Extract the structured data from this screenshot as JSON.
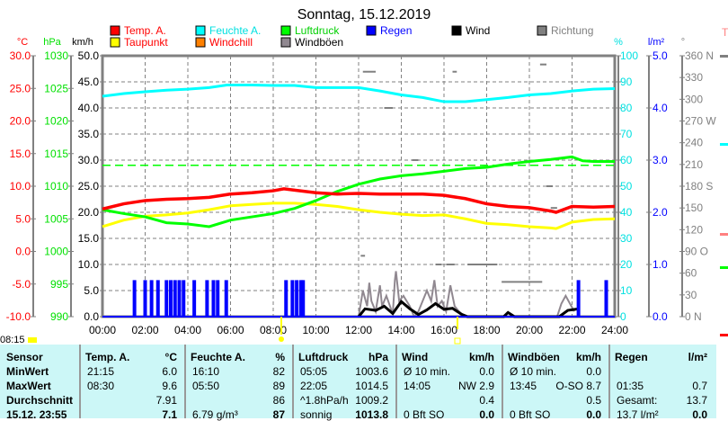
{
  "title": "Sonntag, 15.12.2019",
  "current_time": "08:15",
  "chart_data": {
    "type": "line",
    "title": "Sonntag, 15.12.2019",
    "axes": {
      "celsius": {
        "unit": "°C",
        "ticks": [
          "30.0",
          "25.0",
          "20.0",
          "15.0",
          "10.0",
          "5.0",
          "0.0",
          "-5.0",
          "-10.0"
        ],
        "range": [
          -10,
          30
        ],
        "color": "#ff0000"
      },
      "hpa": {
        "unit": "hPa",
        "ticks": [
          "1030",
          "1025",
          "1020",
          "1015",
          "1010",
          "1005",
          "1000",
          "995",
          "990"
        ],
        "range": [
          990,
          1030
        ],
        "color": "#00e000"
      },
      "kmh": {
        "unit": "km/h",
        "ticks": [
          "50.0",
          "45.0",
          "40.0",
          "35.0",
          "30.0",
          "25.0",
          "20.0",
          "15.0",
          "10.0",
          "5.0",
          "0.0"
        ],
        "range": [
          0,
          50
        ],
        "color": "#000000"
      },
      "percent": {
        "unit": "%",
        "ticks": [
          "100",
          "90",
          "80",
          "70",
          "60",
          "50",
          "40",
          "30",
          "20",
          "10",
          "0"
        ],
        "range": [
          0,
          100
        ],
        "color": "#00e0e0"
      },
      "rain": {
        "unit": "l/m²",
        "ticks": [
          "5.0",
          "4.0",
          "3.0",
          "2.0",
          "1.0",
          "0.0"
        ],
        "range": [
          0,
          5
        ],
        "color": "#0000ff"
      },
      "deg": {
        "unit": "°",
        "ticks": [
          "360 N",
          "330",
          "300",
          "270 W",
          "240",
          "210",
          "180 S",
          "150",
          "120",
          "90  O",
          "60",
          "30",
          "0    N"
        ],
        "range": [
          0,
          360
        ],
        "color": "#808080"
      }
    },
    "x_ticks": [
      "00:00",
      "02:00",
      "04:00",
      "06:00",
      "08:00",
      "10:00",
      "12:00",
      "14:00",
      "16:00",
      "18:00",
      "20:00",
      "22:00",
      "24:00"
    ],
    "legend": [
      {
        "label": "Temp. A.",
        "color": "#ff0000",
        "text_color": "#ff0000"
      },
      {
        "label": "Feuchte A.",
        "color": "#00ffff",
        "text_color": "#00e0e0"
      },
      {
        "label": "Luftdruck",
        "color": "#00ff00",
        "text_color": "#00d000"
      },
      {
        "label": "Regen",
        "color": "#0000ff",
        "text_color": "#0000ff"
      },
      {
        "label": "Wind",
        "color": "#000000",
        "text_color": "#000000"
      },
      {
        "label": "Richtung",
        "color": "#808080",
        "text_color": "#808080"
      },
      {
        "label": "Taupunkt",
        "color": "#ffff00",
        "text_color": "#ff0000"
      },
      {
        "label": "Windchill",
        "color": "#ff8000",
        "text_color": "#ff0000"
      },
      {
        "label": "Windböen",
        "color": "#908890",
        "text_color": "#000000"
      }
    ],
    "series": {
      "temp": {
        "x": [
          0,
          1,
          2,
          3,
          4,
          5,
          6,
          7,
          8,
          8.5,
          9,
          10,
          11,
          12,
          13,
          14,
          15,
          16,
          17,
          18,
          19,
          20,
          21,
          21.25,
          22,
          23,
          24
        ],
        "y": [
          6.5,
          7.3,
          7.8,
          8.0,
          8.1,
          8.3,
          8.8,
          9.0,
          9.3,
          9.6,
          9.4,
          9.0,
          8.8,
          8.9,
          8.8,
          8.8,
          8.8,
          8.6,
          8.1,
          7.3,
          6.9,
          6.7,
          6.2,
          6.0,
          6.9,
          6.8,
          6.9
        ]
      },
      "dewpoint": {
        "x": [
          0,
          1,
          2,
          3,
          4,
          5,
          6,
          7,
          8,
          9,
          10,
          11,
          12,
          13,
          14,
          15,
          16,
          17,
          18,
          19,
          20,
          21,
          21.25,
          22,
          23,
          24
        ],
        "y": [
          3.8,
          4.8,
          5.4,
          5.6,
          5.9,
          6.4,
          7.0,
          7.2,
          7.4,
          7.4,
          7.2,
          6.9,
          6.4,
          6.0,
          5.7,
          5.5,
          5.6,
          5.0,
          4.3,
          4.1,
          3.8,
          3.6,
          3.5,
          4.5,
          4.9,
          5.0
        ]
      },
      "humidity": {
        "x": [
          0,
          1,
          2,
          3,
          4,
          5,
          5.83,
          7,
          8,
          9,
          10,
          11,
          12,
          13,
          14,
          15,
          16,
          17,
          18,
          19,
          20,
          21,
          22,
          23,
          24
        ],
        "y": [
          84.5,
          85.5,
          86.2,
          86.8,
          87.2,
          87.8,
          88.8,
          88.8,
          88.6,
          88.6,
          87.8,
          87.8,
          87.8,
          86.5,
          85,
          84,
          82.4,
          82.4,
          83.2,
          84,
          85,
          85.5,
          86.5,
          87.2,
          87.4
        ]
      },
      "pressure": {
        "x": [
          0,
          1,
          2,
          3,
          4,
          5,
          6,
          7,
          8,
          9,
          10,
          11,
          12,
          13,
          14,
          15,
          16,
          17,
          18,
          19,
          20,
          21,
          22,
          22.5,
          23,
          24
        ],
        "y": [
          1006.4,
          1005.8,
          1005.3,
          1004.4,
          1004.2,
          1003.8,
          1004.8,
          1005.3,
          1005.8,
          1006.6,
          1007.8,
          1009.2,
          1010.3,
          1011.1,
          1011.6,
          1011.9,
          1012.3,
          1012.7,
          1012.9,
          1013.4,
          1013.8,
          1014.1,
          1014.5,
          1013.9,
          1013.8,
          1013.8
        ]
      },
      "pressure_avg": 1013.2,
      "rain": {
        "x": [
          1.5,
          2.0,
          2.3,
          2.6,
          3.0,
          3.2,
          3.4,
          3.6,
          3.8,
          4.3,
          4.9,
          5.2,
          5.4,
          5.8,
          8.6,
          8.9,
          9.1,
          9.3,
          9.4,
          22.3,
          23.6
        ],
        "y": [
          0.7,
          0.7,
          0.7,
          0.7,
          0.7,
          0.7,
          0.7,
          0.7,
          0.7,
          0.7,
          0.7,
          0.7,
          0.7,
          0.7,
          0.7,
          0.7,
          0.7,
          0.7,
          0.7,
          0.7,
          0.7
        ]
      },
      "wind": {
        "x": [
          12,
          12.3,
          12.8,
          13.2,
          13.6,
          14,
          14.4,
          14.8,
          15.2,
          15.6,
          16,
          16.4,
          16.8,
          17.1,
          18.8,
          19,
          19.3,
          21.4,
          21.8,
          22.3
        ],
        "y": [
          0,
          1.5,
          1.2,
          2.0,
          0.6,
          2.9,
          1.5,
          0.4,
          1.3,
          2.5,
          1.4,
          1.6,
          0.5,
          0,
          0,
          0.8,
          0,
          0,
          1.2,
          1.5
        ]
      },
      "gusts": {
        "x": [
          12,
          12.2,
          12.4,
          12.5,
          12.6,
          12.8,
          13,
          13.1,
          13.3,
          13.6,
          13.7,
          13.75,
          13.9,
          14.1,
          14.4,
          14.6,
          14.8,
          15.2,
          15.4,
          15.55,
          15.7,
          15.9,
          16.1,
          16.3,
          16.5,
          16.7,
          17,
          21.3,
          21.5,
          21.7,
          21.9,
          22.1
        ],
        "y": [
          0,
          5,
          2,
          6.5,
          3,
          1,
          6,
          2,
          4,
          0.5,
          7,
          8.7,
          3,
          4,
          2,
          0,
          1,
          5,
          3,
          7,
          2,
          3,
          1,
          6,
          2,
          1,
          0,
          0,
          2.5,
          4,
          2.5,
          1
        ]
      },
      "direction": [
        {
          "x0": 12.1,
          "x1": 12.3,
          "deg": 84
        },
        {
          "x0": 13.2,
          "x1": 13.6,
          "deg": 288
        },
        {
          "x0": 14.5,
          "x1": 14.8,
          "deg": 216
        },
        {
          "x0": 15.6,
          "x1": 15.9,
          "deg": 72
        },
        {
          "x0": 16.1,
          "x1": 16.5,
          "deg": 72
        },
        {
          "x0": 17.1,
          "x1": 18.5,
          "deg": 72
        },
        {
          "x0": 18.7,
          "x1": 20.6,
          "deg": 48
        },
        {
          "x0": 20.5,
          "x1": 20.8,
          "deg": 348
        },
        {
          "x0": 12.2,
          "x1": 12.8,
          "deg": 338
        },
        {
          "x0": 16.4,
          "x1": 16.6,
          "deg": 338
        },
        {
          "x0": 20.8,
          "x1": 21.1,
          "deg": 180
        },
        {
          "x0": 21.0,
          "x1": 21.3,
          "deg": 150
        }
      ]
    }
  },
  "table": {
    "headers": [
      {
        "label": "Sensor"
      },
      {
        "label": "Temp. A.",
        "unit": "°C"
      },
      {
        "label": "Feuchte A.",
        "unit": "%"
      },
      {
        "label": "Luftdruck",
        "unit": "hPa"
      },
      {
        "label": "Wind",
        "unit": "km/h"
      },
      {
        "label": "Windböen",
        "unit": "km/h"
      },
      {
        "label": "Regen",
        "unit": "l/m²"
      }
    ],
    "rows": [
      {
        "label": "MinWert",
        "cells": [
          [
            "21:15",
            "6.0"
          ],
          [
            "16:10",
            "82"
          ],
          [
            "05:05",
            "1003.6"
          ],
          [
            "Ø 10 min.",
            "0.0"
          ],
          [
            "Ø 10 min.",
            "0.0"
          ],
          [
            "",
            ""
          ]
        ]
      },
      {
        "label": "MaxWert",
        "cells": [
          [
            "08:30",
            "9.6"
          ],
          [
            "05:50",
            "89"
          ],
          [
            "22:05",
            "1014.5"
          ],
          [
            "14:05",
            "NW 2.9"
          ],
          [
            "13:45",
            "O-SO 8.7"
          ],
          [
            "01:35",
            "0.7"
          ]
        ]
      },
      {
        "label": "Durchschnitt",
        "cells": [
          [
            "",
            "7.91"
          ],
          [
            "",
            "86"
          ],
          [
            "^1.8hPa/h",
            "1009.2"
          ],
          [
            "",
            "0.4"
          ],
          [
            "",
            "0.5"
          ],
          [
            "Gesamt:",
            "13.7"
          ]
        ]
      },
      {
        "label": "15.12. 23:55",
        "cells": [
          [
            "",
            "7.1"
          ],
          [
            "6.79 g/m³",
            "87"
          ],
          [
            "sonnig",
            "1013.8"
          ],
          [
            "0 Bft SO",
            "0.0"
          ],
          [
            "0 Bft SO",
            "0.0"
          ],
          [
            "13.7 l/m²",
            "0.0"
          ]
        ]
      }
    ]
  }
}
